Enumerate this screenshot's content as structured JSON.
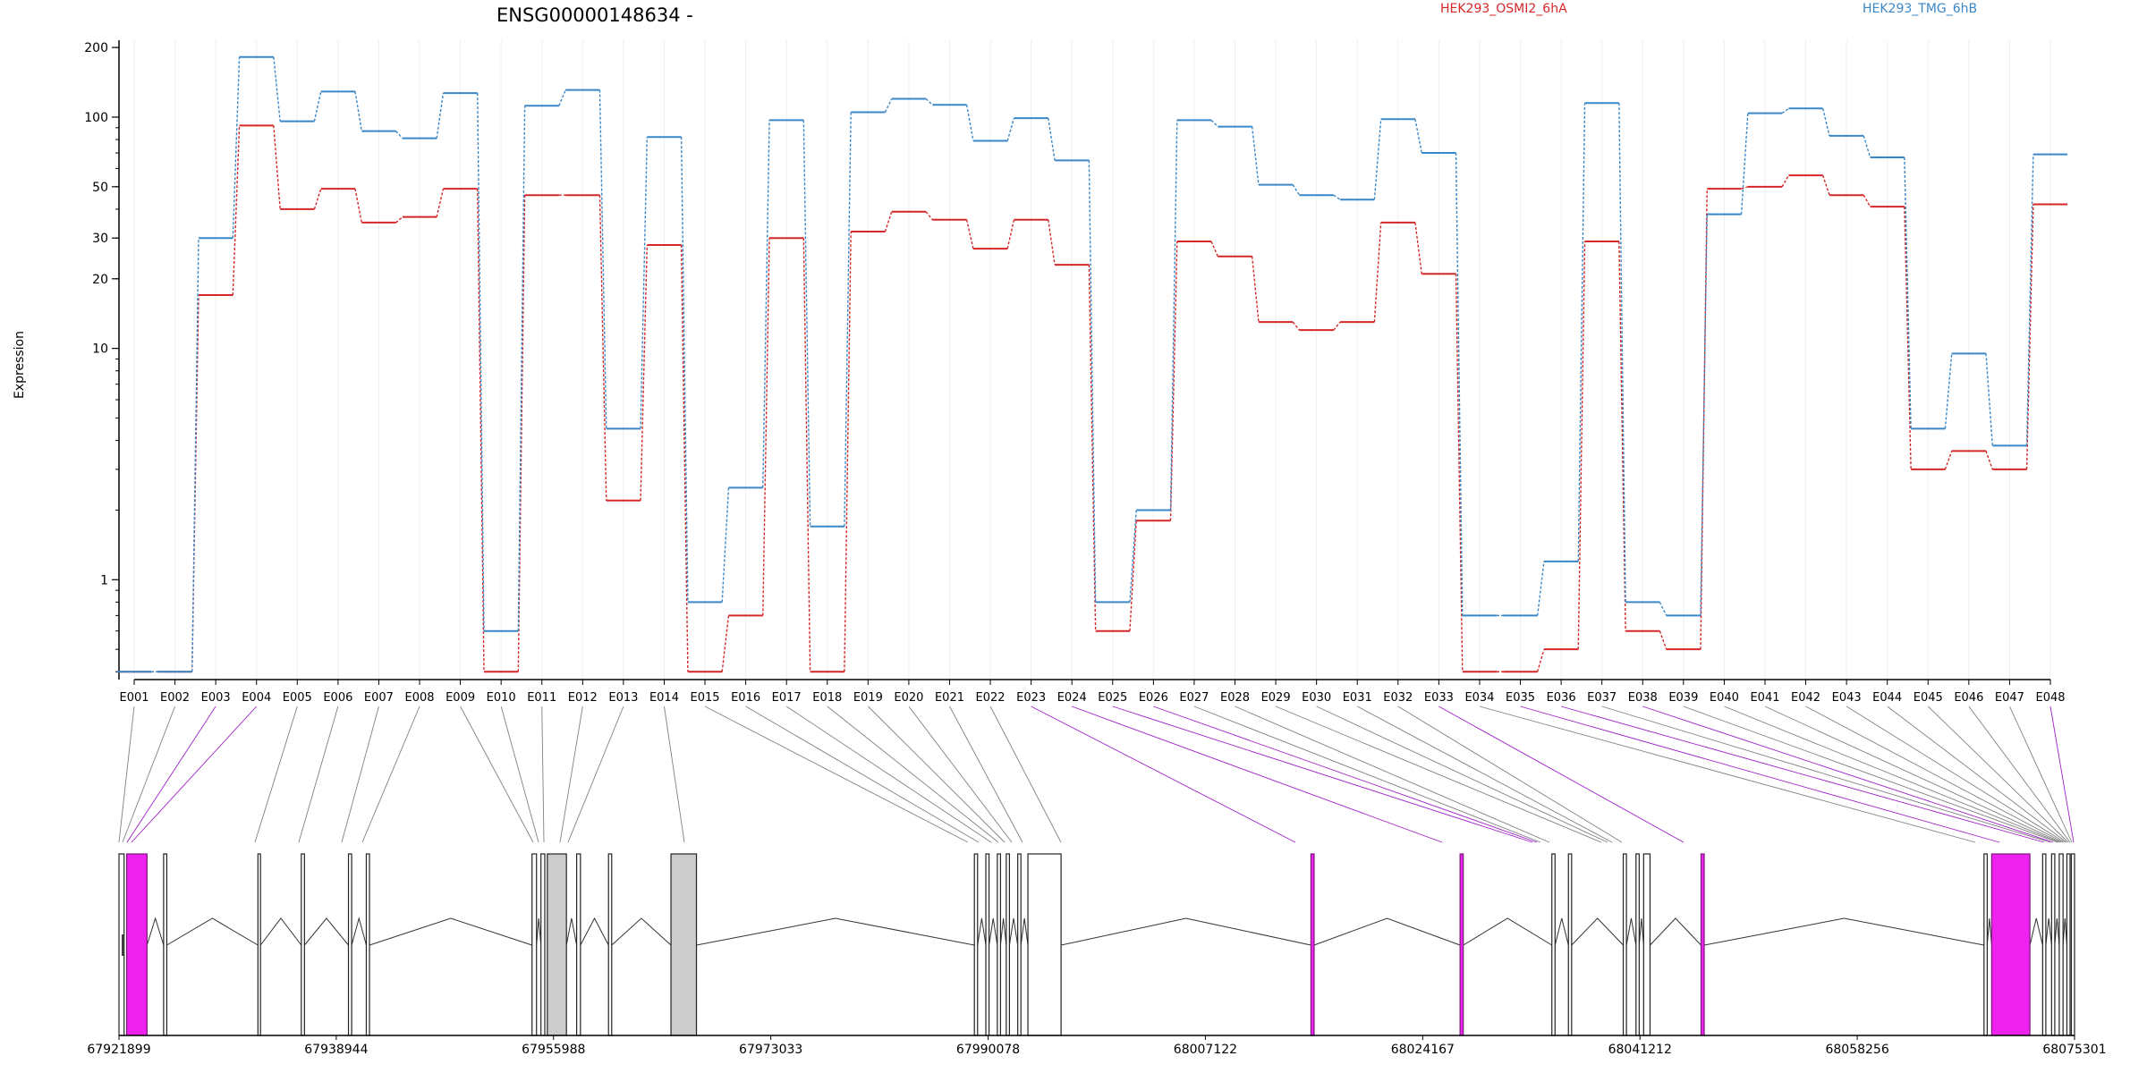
{
  "chart_data": {
    "type": "line",
    "title": "ENSG00000148634 -",
    "xlabel": "",
    "ylabel": "Expression",
    "y_scale": "log",
    "y_ticks": [
      1,
      10,
      20,
      30,
      50,
      100,
      200
    ],
    "grid": true,
    "legend_position": "top-right",
    "categories": [
      "E001",
      "E002",
      "E003",
      "E004",
      "E005",
      "E006",
      "E007",
      "E008",
      "E009",
      "E010",
      "E011",
      "E012",
      "E013",
      "E014",
      "E015",
      "E016",
      "E017",
      "E018",
      "E019",
      "E020",
      "E021",
      "E022",
      "E023",
      "E024",
      "E025",
      "E026",
      "E027",
      "E028",
      "E029",
      "E030",
      "E031",
      "E032",
      "E033",
      "E034",
      "E035",
      "E036",
      "E037",
      "E038",
      "E039",
      "E040",
      "E041",
      "E042",
      "E043",
      "E044",
      "E045",
      "E046",
      "E047",
      "E048"
    ],
    "series": [
      {
        "name": "HEK293_OSMI2_6hA",
        "color": "#d62728",
        "values": [
          0.4,
          0.4,
          17,
          92,
          40,
          49,
          35,
          37,
          49,
          0.4,
          46,
          46,
          2.2,
          28,
          0.4,
          0.7,
          30,
          0.4,
          32,
          39,
          36,
          27,
          36,
          23,
          0.6,
          1.8,
          29,
          25,
          13,
          12,
          13,
          35,
          21,
          0.4,
          0.4,
          0.5,
          29,
          0.6,
          0.5,
          49,
          50,
          56,
          46,
          41,
          3.0,
          3.6,
          3.0,
          42
        ]
      },
      {
        "name": "HEK293_TMG_6hB",
        "color": "#3a87c8",
        "values": [
          0.4,
          0.4,
          30,
          182,
          96,
          129,
          87,
          81,
          127,
          0.6,
          112,
          131,
          4.5,
          82,
          0.8,
          2.5,
          97,
          1.7,
          105,
          120,
          113,
          79,
          99,
          65,
          0.8,
          2.0,
          97,
          91,
          51,
          46,
          44,
          98,
          70,
          0.7,
          0.7,
          1.2,
          115,
          0.8,
          0.7,
          38,
          104,
          109,
          83,
          67,
          4.5,
          9.5,
          3.8,
          69
        ]
      }
    ],
    "genomic_coordinates": [
      "67921899",
      "67938944",
      "67955988",
      "67973033",
      "67990078",
      "68007122",
      "68024167",
      "68041212",
      "68058256",
      "68075301"
    ],
    "gene_structure_colors": {
      "significant_exon": "#ee22ee",
      "shaded_exon": "#cccccc",
      "significant_connector": "#a020c8",
      "normal_connector": "#808080"
    }
  }
}
